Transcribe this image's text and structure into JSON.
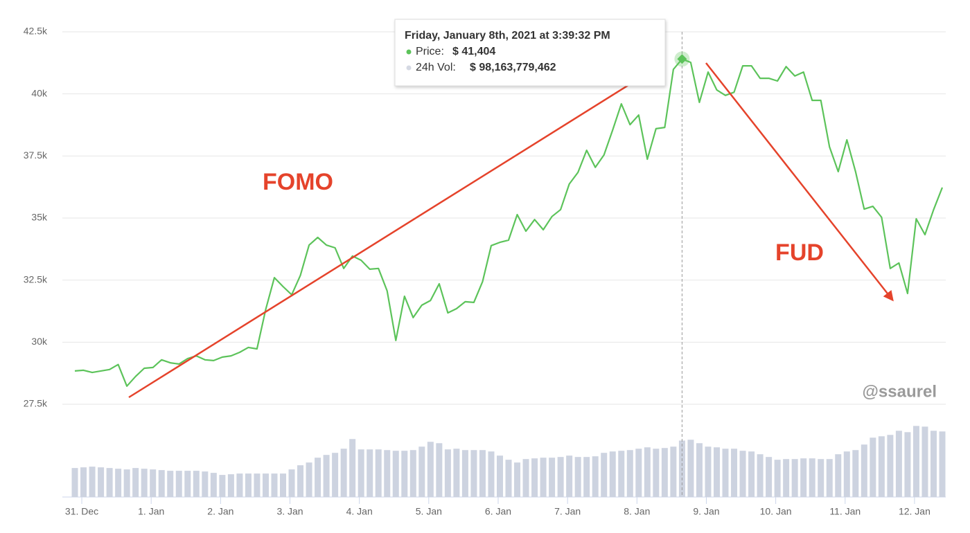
{
  "chart_data": {
    "type": "line",
    "x": [
      -0.1,
      0.025,
      0.15,
      0.275,
      0.4,
      0.525,
      0.65,
      0.775,
      0.9,
      1.025,
      1.15,
      1.275,
      1.4,
      1.525,
      1.65,
      1.775,
      1.9,
      2.025,
      2.15,
      2.275,
      2.4,
      2.525,
      2.65,
      2.775,
      2.9,
      3.025,
      3.15,
      3.275,
      3.4,
      3.525,
      3.65,
      3.775,
      3.9,
      4.025,
      4.15,
      4.275,
      4.4,
      4.525,
      4.65,
      4.775,
      4.9,
      5.025,
      5.15,
      5.275,
      5.4,
      5.525,
      5.65,
      5.775,
      5.9,
      6.025,
      6.15,
      6.275,
      6.4,
      6.525,
      6.65,
      6.775,
      6.9,
      7.025,
      7.15,
      7.275,
      7.4,
      7.525,
      7.65,
      7.775,
      7.9,
      8.025,
      8.15,
      8.275,
      8.4,
      8.525,
      8.65,
      8.775,
      8.9,
      9.025,
      9.15,
      9.275,
      9.4,
      9.525,
      9.65,
      9.775,
      9.9,
      10.025,
      10.15,
      10.275,
      10.4,
      10.525,
      10.65,
      10.775,
      10.9,
      11.025,
      11.15,
      11.275,
      11.4,
      11.525,
      11.65,
      11.775,
      11.9,
      12.025,
      12.15,
      12.275,
      12.4
    ],
    "xlim": [
      -0.28,
      12.45
    ],
    "xticks": [
      {
        "value": 0,
        "label": "31. Dec"
      },
      {
        "value": 1,
        "label": "1. Jan"
      },
      {
        "value": 2,
        "label": "2. Jan"
      },
      {
        "value": 3,
        "label": "3. Jan"
      },
      {
        "value": 4,
        "label": "4. Jan"
      },
      {
        "value": 5,
        "label": "5. Jan"
      },
      {
        "value": 6,
        "label": "6. Jan"
      },
      {
        "value": 7,
        "label": "7. Jan"
      },
      {
        "value": 8,
        "label": "8. Jan"
      },
      {
        "value": 9,
        "label": "9. Jan"
      },
      {
        "value": 10,
        "label": "10. Jan"
      },
      {
        "value": 11,
        "label": "11. Jan"
      },
      {
        "value": 12,
        "label": "12. Jan"
      }
    ],
    "ylim": [
      27500,
      42500
    ],
    "yticks": [
      {
        "value": 27500,
        "label": "27.5k"
      },
      {
        "value": 30000,
        "label": "30k"
      },
      {
        "value": 32500,
        "label": "32.5k"
      },
      {
        "value": 35000,
        "label": "35k"
      },
      {
        "value": 37500,
        "label": "37.5k"
      },
      {
        "value": 40000,
        "label": "40k"
      },
      {
        "value": 42500,
        "label": "42.5k"
      }
    ],
    "grid": true,
    "series": [
      {
        "color": "#5cc35a",
        "values": [
          28840,
          28870,
          28780,
          28840,
          28900,
          29100,
          28230,
          28620,
          28950,
          28980,
          29290,
          29170,
          29120,
          29340,
          29450,
          29290,
          29260,
          29400,
          29450,
          29590,
          29790,
          29730,
          31320,
          32600,
          32240,
          31910,
          32690,
          33910,
          34220,
          33910,
          33800,
          32970,
          33470,
          33300,
          32940,
          32970,
          32070,
          30070,
          31850,
          30990,
          31490,
          31680,
          32350,
          31180,
          31350,
          31630,
          31600,
          32440,
          33890,
          34020,
          34110,
          35140,
          34470,
          34940,
          34530,
          35060,
          35340,
          36370,
          36840,
          37730,
          37040,
          37540,
          38540,
          39600,
          38760,
          39150,
          37370,
          38600,
          38650,
          40990,
          41404,
          41270,
          39660,
          40880,
          40160,
          39940,
          40070,
          41130,
          41130,
          40630,
          40630,
          40520,
          41100,
          40720,
          40880,
          39740,
          39740,
          37870,
          36870,
          38150,
          36870,
          35360,
          35470,
          35030,
          32970,
          33190,
          31960,
          34970,
          34330,
          35340,
          36230
        ]
      }
    ],
    "volume": {
      "color": "#cdd3e0",
      "lim": [
        0,
        130
      ],
      "values": [
        50.4,
        51.6,
        52.8,
        51.6,
        50.4,
        49.2,
        48,
        50.4,
        49.2,
        48,
        46.8,
        45.6,
        45.6,
        45.6,
        45.6,
        44.4,
        42,
        38.4,
        39.6,
        40.8,
        40.8,
        40.8,
        40.8,
        40.8,
        40.8,
        48,
        55.2,
        60,
        68.4,
        73.2,
        76.8,
        84,
        100.8,
        82.8,
        82.8,
        82.8,
        81.6,
        80.4,
        80.4,
        81.6,
        87.6,
        96,
        93.6,
        82.8,
        84,
        81.6,
        81.6,
        81.6,
        79.2,
        72,
        64.8,
        60,
        66,
        67.2,
        68.4,
        68.4,
        69.6,
        72,
        69.6,
        69.6,
        70.8,
        76.8,
        79.2,
        80.4,
        81.6,
        84,
        86.4,
        84,
        85.2,
        87.6,
        98.16,
        99.6,
        93.6,
        87.6,
        86.4,
        84,
        84,
        80.4,
        79.2,
        74.4,
        69.6,
        64.8,
        66,
        66,
        67.2,
        67.2,
        66,
        66,
        74.4,
        79.2,
        81.6,
        91.2,
        103.2,
        105.6,
        108,
        115.2,
        112.8,
        123.6,
        122.4,
        115.2,
        114
      ]
    },
    "annotations": [
      "FOMO",
      "FUD"
    ],
    "watermark": "@ssaurel",
    "tooltip": {
      "title": "Friday, January 8th, 2021 at 3:39:32 PM",
      "rows": [
        {
          "label": "Price:",
          "value": "$ 41,404"
        },
        {
          "label": "24h Vol:",
          "value": "$ 98,163,779,462"
        }
      ]
    }
  }
}
